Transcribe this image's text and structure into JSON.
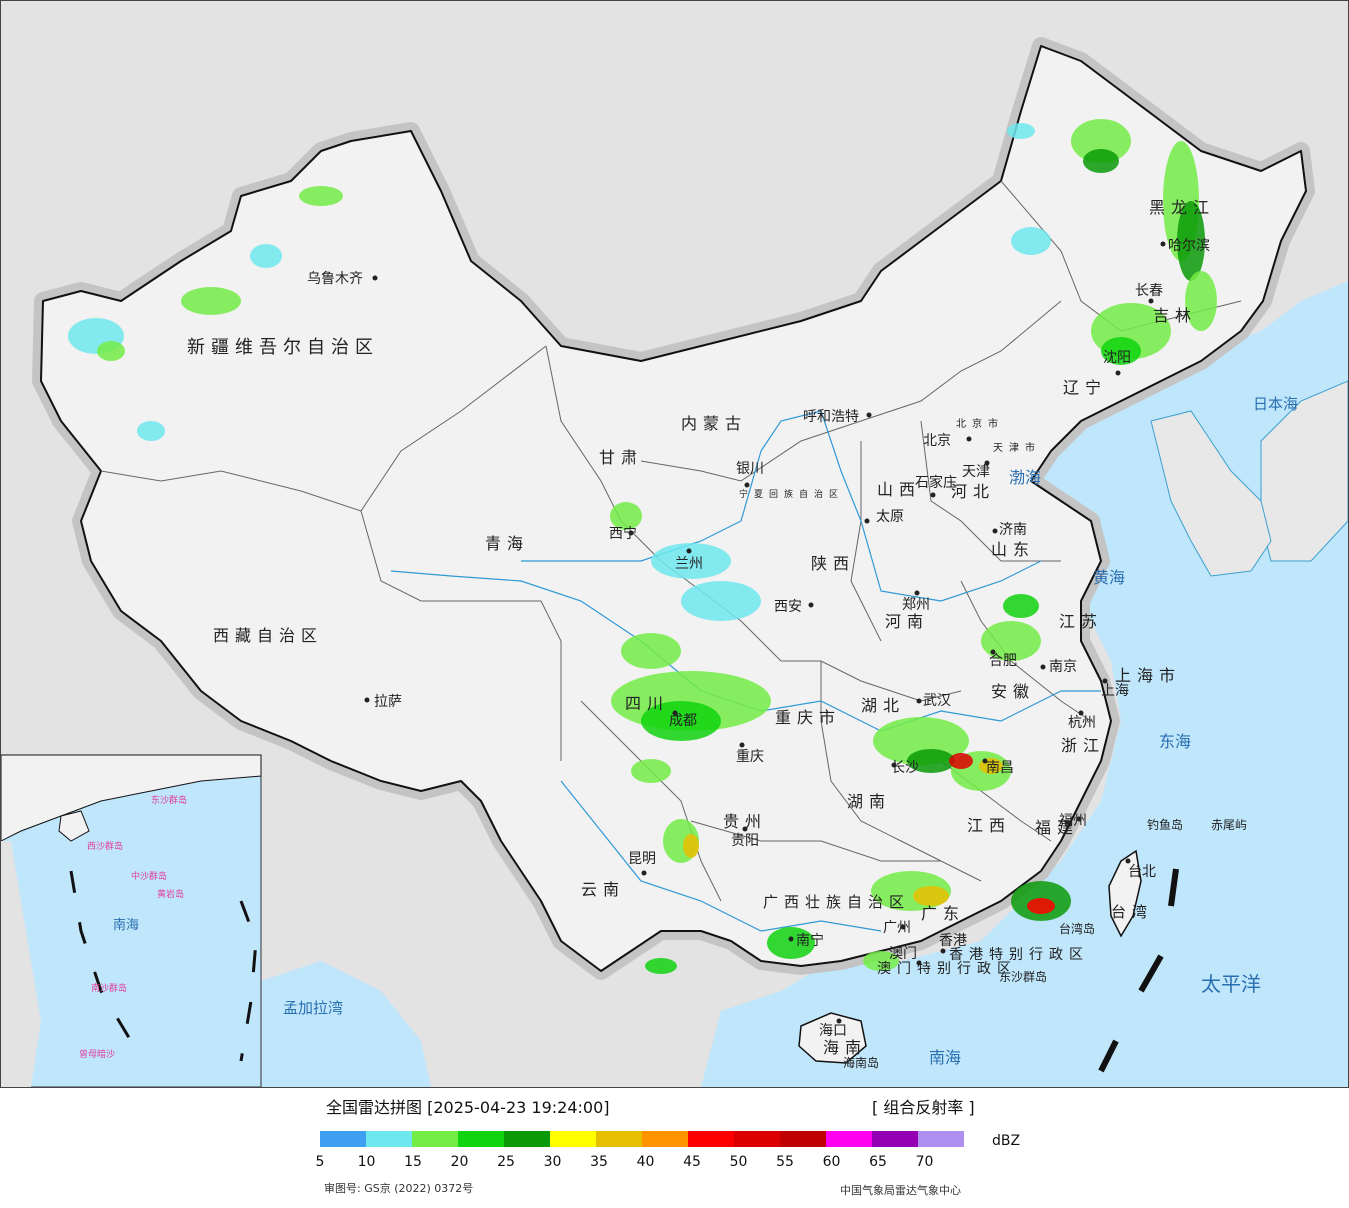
{
  "cities": [
    {
      "name": "乌鲁木齐"
    },
    {
      "name": "拉萨"
    },
    {
      "name": "西宁"
    },
    {
      "name": "兰州"
    },
    {
      "name": "银川"
    },
    {
      "name": "呼和浩特"
    },
    {
      "name": "北京"
    },
    {
      "name": "天津"
    },
    {
      "name": "石家庄"
    },
    {
      "name": "太原"
    },
    {
      "name": "济南"
    },
    {
      "name": "郑州"
    },
    {
      "name": "西安"
    },
    {
      "name": "合肥"
    },
    {
      "name": "南京"
    },
    {
      "name": "上海"
    },
    {
      "name": "杭州"
    },
    {
      "name": "武汉"
    },
    {
      "name": "重庆"
    },
    {
      "name": "成都"
    },
    {
      "name": "贵阳"
    },
    {
      "name": "昆明"
    },
    {
      "name": "南宁"
    },
    {
      "name": "长沙"
    },
    {
      "name": "南昌"
    },
    {
      "name": "福州"
    },
    {
      "name": "台北"
    },
    {
      "name": "广州"
    },
    {
      "name": "香港"
    },
    {
      "name": "澳门"
    },
    {
      "name": "海口"
    },
    {
      "name": "哈尔滨"
    },
    {
      "name": "长春"
    },
    {
      "name": "沈阳"
    }
  ],
  "provinces": [
    "新疆维吾尔自治区",
    "西藏自治区",
    "青海",
    "甘肃",
    "内蒙古",
    "黑龙江",
    "吉林",
    "辽宁",
    "河北",
    "山西",
    "山东",
    "河南",
    "陕西",
    "四川",
    "重庆市",
    "湖北",
    "湖南",
    "江苏",
    "安徽",
    "上海市",
    "浙江",
    "江西",
    "福建",
    "贵州",
    "云南",
    "广西壮族自治区",
    "广东",
    "海南",
    "台湾",
    "宁夏回族自治区",
    "北京市",
    "天津市",
    "香港特别行政区",
    "澳门特别行政区"
  ],
  "seas": [
    "渤海",
    "黄海",
    "东海",
    "日本海",
    "太平洋",
    "南海",
    "孟加拉湾"
  ],
  "islands": [
    "钓鱼岛",
    "赤尾屿",
    "台湾岛",
    "东沙群岛",
    "海南岛"
  ],
  "inset": {
    "seas": [
      "南海"
    ],
    "islands": [
      "东沙群岛",
      "西沙群岛",
      "中沙群岛",
      "黄岩岛",
      "南沙群岛",
      "曾母暗沙"
    ]
  },
  "legend": {
    "title": "全国雷达拼图 [2025-04-23 19:24:00]",
    "product": "[ 组合反射率 ]",
    "unit": "dBZ",
    "colors": [
      "#3f9ff0",
      "#6ee7ee",
      "#74ec46",
      "#10d40f",
      "#0a9a08",
      "#ffff00",
      "#e6c000",
      "#ff9300",
      "#ff0000",
      "#dd0000",
      "#c00000",
      "#ff00f0",
      "#9600b4",
      "#ad90f0"
    ],
    "ticks": [
      "5",
      "10",
      "15",
      "20",
      "25",
      "30",
      "35",
      "40",
      "45",
      "50",
      "55",
      "60",
      "65",
      "70"
    ],
    "review_no": "审图号: GS京 (2022) 0372号",
    "producer": "中国气象局雷达气象中心"
  }
}
